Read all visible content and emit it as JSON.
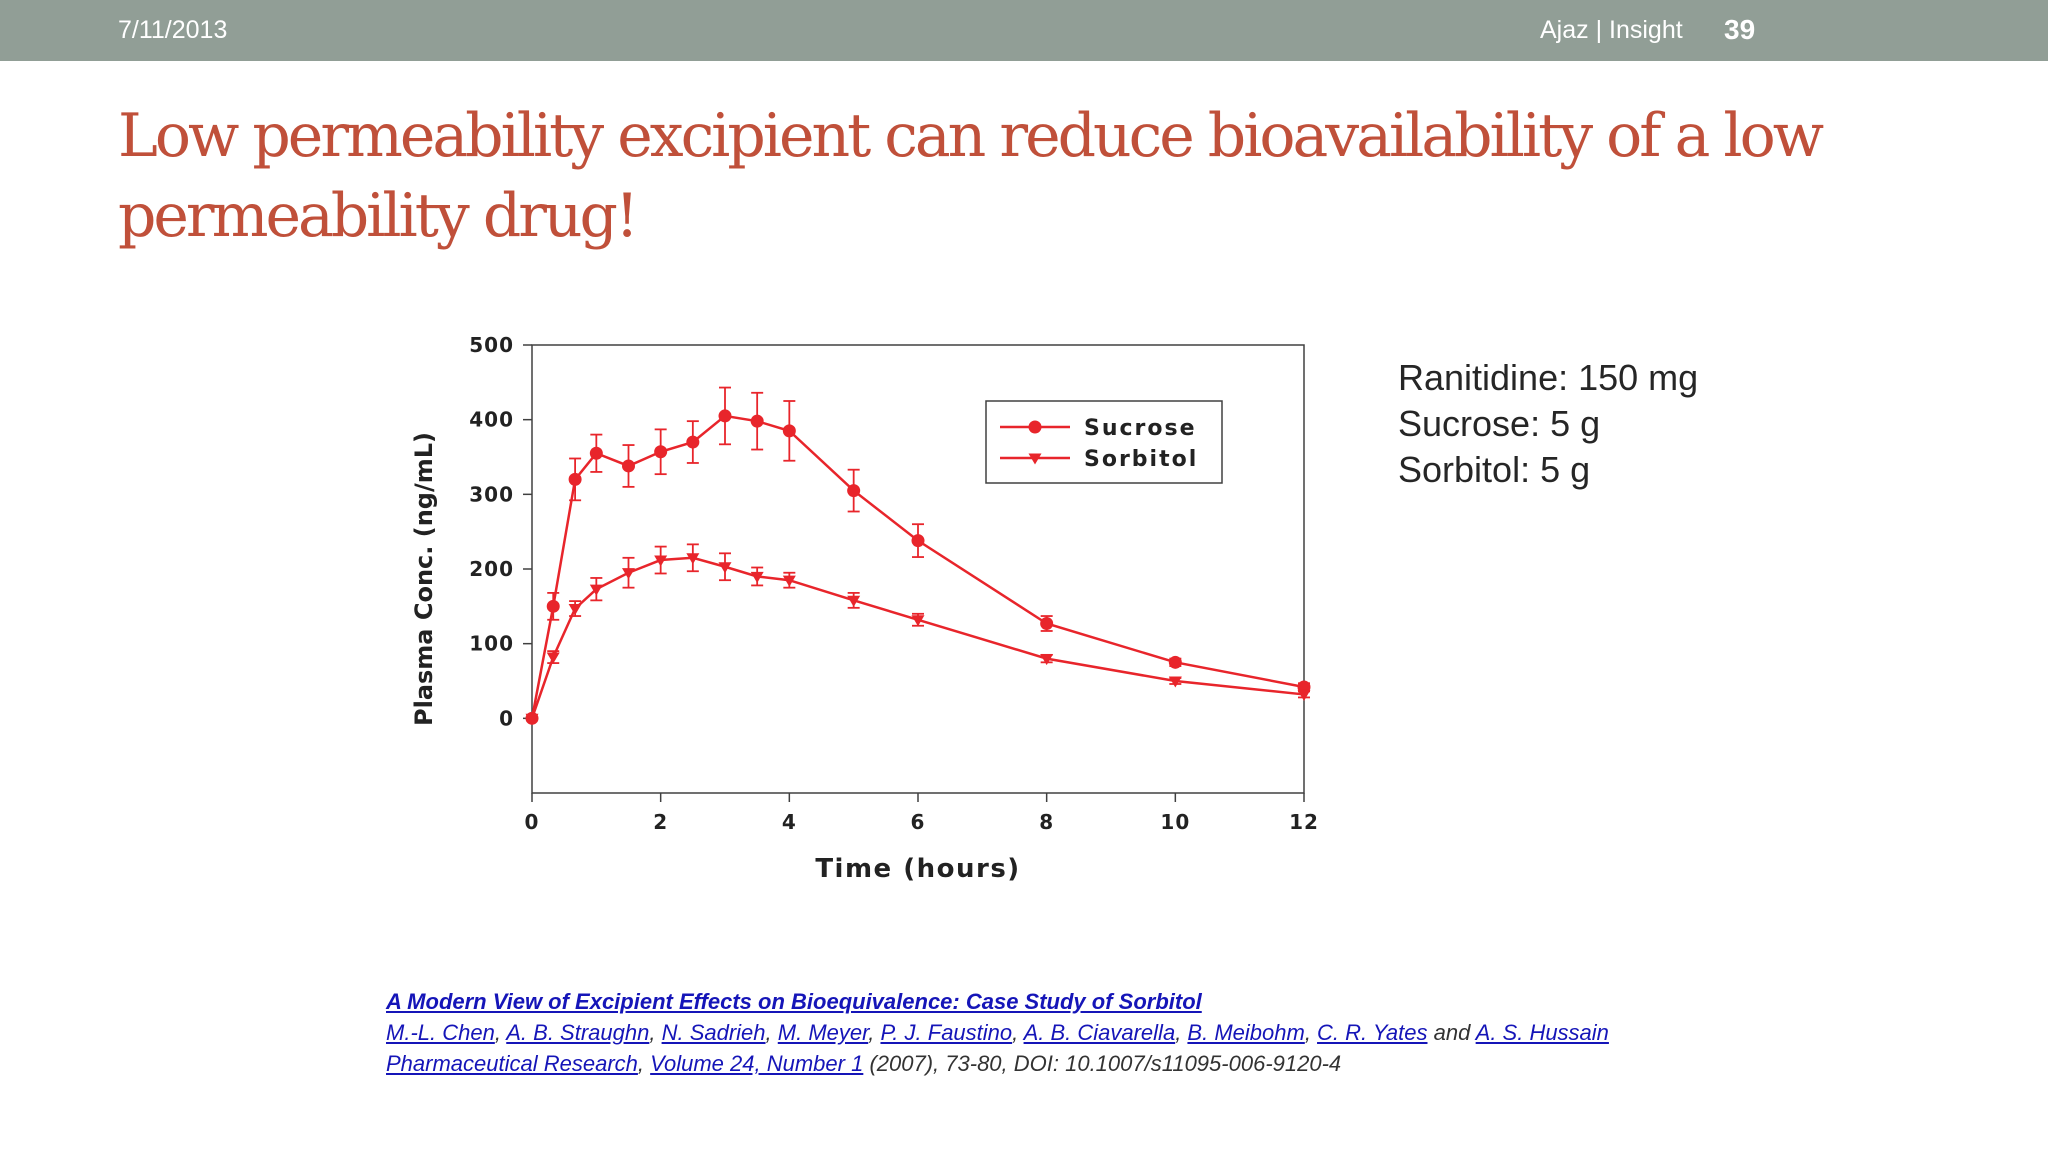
{
  "header": {
    "date": "7/11/2013",
    "footer": "Ajaz | Insight",
    "page_number": "39"
  },
  "title": "Low permeability excipient can reduce bioavailability of a low permeability drug!",
  "notes": [
    "Ranitidine: 150 mg",
    "Sucrose: 5 g",
    "Sorbitol: 5 g"
  ],
  "citation": {
    "article_title": "A Modern View of Excipient Effects on Bioequivalence: Case Study of Sorbitol",
    "authors": [
      "M.-L. Chen",
      "A. B. Straughn",
      "N. Sadrieh",
      "M. Meyer",
      "P. J. Faustino",
      "A. B. Ciavarella",
      "B. Meibohm",
      "C. R. Yates"
    ],
    "and_text": "and",
    "last_author": "A. S. Hussain",
    "journal": "Pharmaceutical Research",
    "volume": "Volume 24, Number 1",
    "details": "(2007), 73-80, DOI: 10.1007/s11095-006-9120-4",
    "link_color": "#1515b8"
  },
  "chart_data": {
    "type": "line",
    "xlabel": "Time (hours)",
    "ylabel": "Plasma Conc. (ng/mL)",
    "xlim": [
      0,
      12
    ],
    "ylim": [
      -100,
      500
    ],
    "xticks": [
      0,
      2,
      4,
      6,
      8,
      10,
      12
    ],
    "yticks": [
      0,
      100,
      200,
      300,
      400,
      500
    ],
    "legend_position": "top-right",
    "grid": false,
    "color": "#e8252b",
    "series": [
      {
        "name": "Sucrose",
        "marker": "circle",
        "x": [
          0,
          0.33,
          0.67,
          1,
          1.5,
          2,
          2.5,
          3,
          3.5,
          4,
          5,
          6,
          8,
          10,
          12
        ],
        "y": [
          0,
          150,
          320,
          355,
          338,
          357,
          370,
          405,
          398,
          385,
          305,
          238,
          127,
          75,
          42
        ],
        "err": [
          0,
          18,
          28,
          25,
          28,
          30,
          28,
          38,
          38,
          40,
          28,
          22,
          10,
          5,
          5
        ]
      },
      {
        "name": "Sorbitol",
        "marker": "triangle-down",
        "x": [
          0,
          0.33,
          0.67,
          1,
          1.5,
          2,
          2.5,
          3,
          3.5,
          4,
          5,
          6,
          8,
          10,
          12
        ],
        "y": [
          0,
          82,
          147,
          173,
          195,
          212,
          215,
          203,
          190,
          185,
          158,
          132,
          80,
          50,
          32
        ],
        "err": [
          0,
          8,
          10,
          15,
          20,
          18,
          18,
          18,
          12,
          10,
          10,
          8,
          5,
          4,
          4
        ]
      }
    ]
  }
}
